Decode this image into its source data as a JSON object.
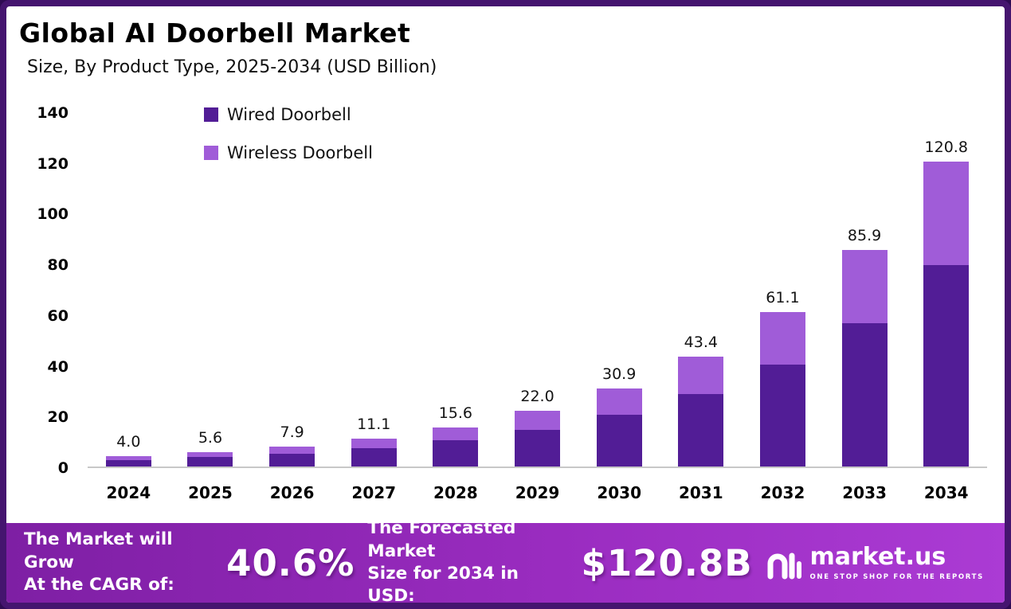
{
  "header": {
    "title": "Global AI Doorbell Market",
    "subtitle": "Size, By Product Type, 2025-2034 (USD Billion)"
  },
  "chart_data": {
    "type": "bar",
    "stacked": true,
    "title": "Global AI Doorbell Market Size, By Product Type, 2025-2034 (USD Billion)",
    "categories": [
      "2024",
      "2025",
      "2026",
      "2027",
      "2028",
      "2029",
      "2030",
      "2031",
      "2032",
      "2033",
      "2034"
    ],
    "series": [
      {
        "name": "Wired Doorbell",
        "color": "#521d96",
        "values": [
          2.6,
          3.7,
          5.2,
          7.3,
          10.3,
          14.5,
          20.4,
          28.6,
          40.3,
          56.7,
          79.7
        ]
      },
      {
        "name": "Wireless Doorbell",
        "color": "#a05cd8",
        "values": [
          1.4,
          1.9,
          2.7,
          3.8,
          5.3,
          7.5,
          10.5,
          14.8,
          20.8,
          29.2,
          41.1
        ]
      }
    ],
    "totals": [
      4.0,
      5.6,
      7.9,
      11.1,
      15.6,
      22.0,
      30.9,
      43.4,
      61.1,
      85.9,
      120.8
    ],
    "total_labels": [
      "4.0",
      "5.6",
      "7.9",
      "11.1",
      "15.6",
      "22.0",
      "30.9",
      "43.4",
      "61.1",
      "85.9",
      "120.8"
    ],
    "ylim": [
      0,
      140
    ],
    "yticks": [
      0,
      20,
      40,
      60,
      80,
      100,
      120,
      140
    ],
    "legend_position": "top-left",
    "grid": false,
    "xlabel": "",
    "ylabel": ""
  },
  "footer": {
    "cagr_label_line1": "The Market will Grow",
    "cagr_label_line2": "At the CAGR of:",
    "cagr_value": "40.6%",
    "forecast_label_line1": "The Forecasted Market",
    "forecast_label_line2": "Size for 2034 in USD:",
    "forecast_value": "$120.8B",
    "brand_name": "market.us",
    "brand_tagline": "ONE STOP SHOP FOR THE REPORTS"
  },
  "colors": {
    "wired": "#521d96",
    "wireless": "#a05cd8",
    "frame": "#45156f",
    "banner_gradient_start": "#7e1fa4",
    "banner_gradient_end": "#ab3bd4"
  }
}
